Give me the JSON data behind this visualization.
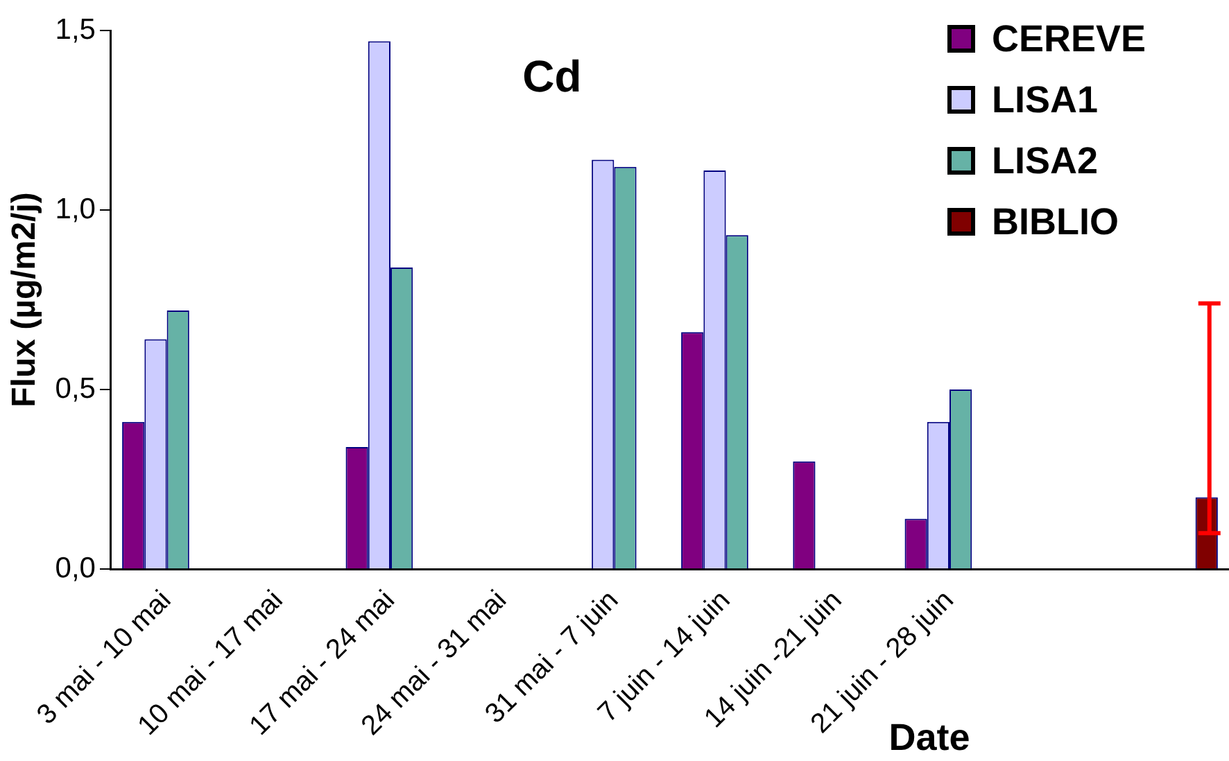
{
  "chart_data": {
    "type": "bar",
    "title": "Cd",
    "xlabel": "Date",
    "ylabel": "Flux (µg/m2/j)",
    "categories": [
      "3 mai - 10 mai",
      "10 mai - 17 mai",
      "17 mai - 24 mai",
      "24 mai - 31 mai",
      "31 mai - 7 juin",
      "7 juin - 14 juin",
      "14 juin -21 juin",
      "21 juin - 28 juin",
      null,
      null
    ],
    "series": [
      {
        "name": "CEREVE",
        "color": "#800080",
        "values": [
          0.41,
          null,
          0.34,
          null,
          null,
          0.66,
          0.3,
          0.14,
          null,
          null
        ]
      },
      {
        "name": "LISA1",
        "color": "#ccccff",
        "values": [
          0.64,
          null,
          1.47,
          null,
          1.14,
          1.11,
          null,
          0.41,
          null,
          null
        ]
      },
      {
        "name": "LISA2",
        "color": "#66b2a6",
        "values": [
          0.72,
          null,
          0.84,
          null,
          1.12,
          0.93,
          null,
          0.5,
          null,
          null
        ]
      },
      {
        "name": "BIBLIO",
        "color": "#800000",
        "values": [
          null,
          null,
          null,
          null,
          null,
          null,
          null,
          null,
          null,
          0.2
        ],
        "errors": [
          null,
          null,
          null,
          null,
          null,
          null,
          null,
          null,
          null,
          [
            0.1,
            0.74
          ]
        ]
      }
    ],
    "ylim": [
      0,
      1.5
    ],
    "yticks": [
      {
        "value": 0,
        "label": "0,0"
      },
      {
        "value": 0.5,
        "label": "0,5"
      },
      {
        "value": 1,
        "label": "1,0"
      },
      {
        "value": 1.5,
        "label": "1,5"
      }
    ],
    "grid": false,
    "legend": "top right"
  }
}
